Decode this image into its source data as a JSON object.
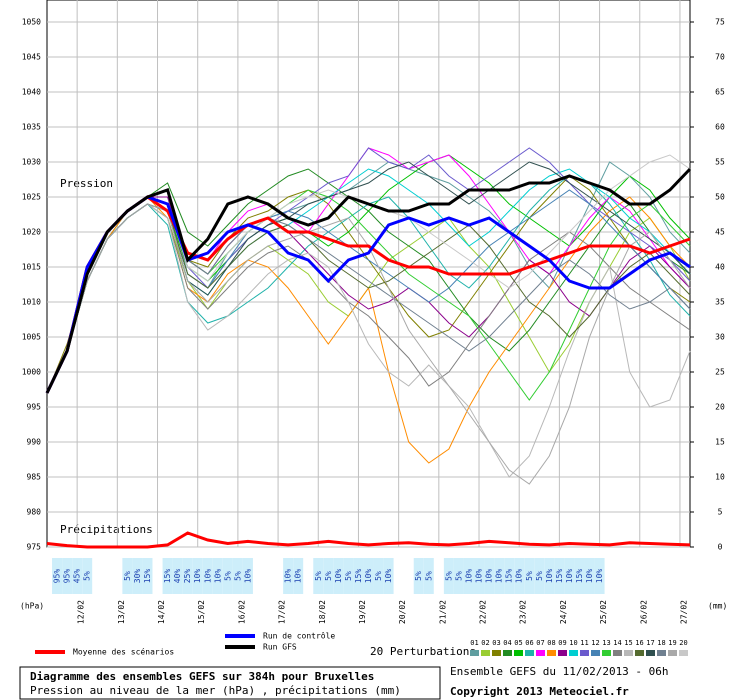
{
  "chart_data": {
    "type": "line",
    "title": "Diagramme des ensembles GEFS sur 384h pour Bruxelles",
    "subtitle": "Pression au niveau de la mer (hPa) , précipitations (mm)",
    "run_label": "Ensemble GEFS du 11/02/2013 - 06h",
    "copyright": "Copyright 2013 Meteociel.fr",
    "perturbations_label": "20 Perturbations",
    "pressure_label": "Pression",
    "precip_label": "Précipitations",
    "ylabel": "(hPa)",
    "y2label": "(mm)",
    "grid": true,
    "xlim": [
      0,
      384
    ],
    "xticks": [
      {
        "value": 18,
        "label": "12/02"
      },
      {
        "value": 42,
        "label": "13/02"
      },
      {
        "value": 66,
        "label": "14/02"
      },
      {
        "value": 90,
        "label": "15/02"
      },
      {
        "value": 114,
        "label": "16/02"
      },
      {
        "value": 138,
        "label": "17/02"
      },
      {
        "value": 162,
        "label": "18/02"
      },
      {
        "value": 186,
        "label": "19/02"
      },
      {
        "value": 210,
        "label": "20/02"
      },
      {
        "value": 234,
        "label": "21/02"
      },
      {
        "value": 258,
        "label": "22/02"
      },
      {
        "value": 282,
        "label": "23/02"
      },
      {
        "value": 306,
        "label": "24/02"
      },
      {
        "value": 330,
        "label": "25/02"
      },
      {
        "value": 354,
        "label": "26/02"
      },
      {
        "value": 378,
        "label": "27/02"
      }
    ],
    "ylim": [
      975,
      1050
    ],
    "yticks": [
      975,
      980,
      985,
      990,
      995,
      1000,
      1005,
      1010,
      1015,
      1020,
      1025,
      1030,
      1035,
      1040,
      1045,
      1050
    ],
    "y2lim": [
      0,
      75
    ],
    "y2ticks": [
      0,
      5,
      10,
      15,
      20,
      25,
      30,
      35,
      40,
      45,
      50,
      55,
      60,
      65,
      70,
      75
    ],
    "x": [
      0,
      12,
      24,
      36,
      48,
      60,
      72,
      84,
      96,
      108,
      120,
      132,
      144,
      156,
      168,
      180,
      192,
      204,
      216,
      228,
      240,
      252,
      264,
      276,
      288,
      300,
      312,
      324,
      336,
      348,
      360,
      372,
      384
    ],
    "series": [
      {
        "name": "01",
        "color": "#5f9ea0",
        "values": [
          997,
          1003,
          1014,
          1020,
          1023,
          1025,
          1025,
          1014,
          1012,
          1017,
          1020,
          1022,
          1023,
          1024,
          1025,
          1026,
          1028,
          1030,
          1029,
          1028,
          1027,
          1025,
          1023,
          1020,
          1015,
          1012,
          1018,
          1024,
          1030,
          1028,
          1025,
          1020,
          1017
        ]
      },
      {
        "name": "02",
        "color": "#9acd32",
        "values": [
          997,
          1003,
          1013,
          1019,
          1022,
          1024,
          1022,
          1013,
          1009,
          1013,
          1016,
          1018,
          1016,
          1014,
          1010,
          1008,
          1012,
          1016,
          1018,
          1020,
          1022,
          1018,
          1015,
          1010,
          1005,
          1000,
          1004,
          1010,
          1015,
          1020,
          1022,
          1018,
          1013
        ]
      },
      {
        "name": "03",
        "color": "#808000",
        "values": [
          997,
          1004,
          1014,
          1020,
          1023,
          1025,
          1024,
          1016,
          1015,
          1019,
          1022,
          1023,
          1025,
          1026,
          1024,
          1020,
          1016,
          1012,
          1008,
          1005,
          1006,
          1010,
          1014,
          1018,
          1022,
          1025,
          1028,
          1026,
          1022,
          1018,
          1015,
          1012,
          1010
        ]
      },
      {
        "name": "04",
        "color": "#228b22",
        "values": [
          997,
          1003,
          1013,
          1019,
          1023,
          1025,
          1027,
          1020,
          1018,
          1021,
          1024,
          1026,
          1028,
          1029,
          1027,
          1025,
          1023,
          1020,
          1018,
          1016,
          1012,
          1008,
          1005,
          1003,
          1006,
          1010,
          1014,
          1018,
          1022,
          1024,
          1020,
          1016,
          1014
        ]
      },
      {
        "name": "05",
        "color": "#00c000",
        "values": [
          997,
          1003,
          1014,
          1020,
          1023,
          1025,
          1023,
          1015,
          1013,
          1016,
          1019,
          1021,
          1022,
          1020,
          1018,
          1020,
          1023,
          1026,
          1028,
          1030,
          1031,
          1029,
          1027,
          1024,
          1022,
          1020,
          1018,
          1021,
          1025,
          1028,
          1026,
          1022,
          1019
        ]
      },
      {
        "name": "06",
        "color": "#20b2aa",
        "values": [
          997,
          1003,
          1013,
          1019,
          1022,
          1024,
          1021,
          1010,
          1007,
          1008,
          1010,
          1012,
          1015,
          1018,
          1020,
          1022,
          1024,
          1025,
          1022,
          1018,
          1014,
          1012,
          1015,
          1019,
          1023,
          1026,
          1028,
          1027,
          1024,
          1020,
          1016,
          1011,
          1008
        ]
      },
      {
        "name": "07",
        "color": "#ff00ff",
        "values": [
          997,
          1003,
          1014,
          1020,
          1023,
          1025,
          1024,
          1017,
          1016,
          1020,
          1023,
          1024,
          1022,
          1020,
          1024,
          1028,
          1032,
          1031,
          1029,
          1030,
          1031,
          1028,
          1024,
          1020,
          1016,
          1014,
          1018,
          1022,
          1025,
          1023,
          1019,
          1015,
          1012
        ]
      },
      {
        "name": "08",
        "color": "#ff8c00",
        "values": [
          997,
          1003,
          1013,
          1019,
          1023,
          1025,
          1022,
          1012,
          1010,
          1014,
          1016,
          1015,
          1012,
          1008,
          1004,
          1008,
          1012,
          1000,
          990,
          987,
          989,
          995,
          1000,
          1004,
          1008,
          1012,
          1016,
          1020,
          1023,
          1025,
          1022,
          1018,
          1015
        ]
      },
      {
        "name": "09",
        "color": "#8b008b",
        "values": [
          997,
          1003,
          1014,
          1020,
          1023,
          1025,
          1025,
          1016,
          1014,
          1018,
          1021,
          1022,
          1020,
          1017,
          1014,
          1011,
          1009,
          1010,
          1012,
          1010,
          1007,
          1005,
          1008,
          1012,
          1016,
          1014,
          1010,
          1008,
          1012,
          1016,
          1018,
          1015,
          1012
        ]
      },
      {
        "name": "10",
        "color": "#00ced1",
        "values": [
          997,
          1003,
          1013,
          1019,
          1022,
          1024,
          1023,
          1013,
          1011,
          1015,
          1018,
          1020,
          1021,
          1023,
          1025,
          1027,
          1029,
          1028,
          1026,
          1024,
          1021,
          1018,
          1020,
          1023,
          1026,
          1028,
          1029,
          1027,
          1025,
          1022,
          1020,
          1017,
          1014
        ]
      },
      {
        "name": "11",
        "color": "#6a5acd",
        "values": [
          997,
          1003,
          1014,
          1020,
          1023,
          1025,
          1024,
          1015,
          1012,
          1016,
          1019,
          1021,
          1023,
          1025,
          1027,
          1028,
          1032,
          1030,
          1029,
          1031,
          1028,
          1026,
          1028,
          1030,
          1032,
          1030,
          1027,
          1024,
          1022,
          1020,
          1018,
          1016,
          1013
        ]
      },
      {
        "name": "12",
        "color": "#4682b4",
        "values": [
          997,
          1003,
          1013,
          1019,
          1022,
          1024,
          1023,
          1014,
          1012,
          1016,
          1020,
          1022,
          1023,
          1022,
          1020,
          1018,
          1016,
          1014,
          1012,
          1010,
          1012,
          1015,
          1018,
          1020,
          1022,
          1024,
          1026,
          1024,
          1021,
          1018,
          1015,
          1012,
          1009
        ]
      },
      {
        "name": "13",
        "color": "#32cd32",
        "values": [
          997,
          1003,
          1014,
          1020,
          1023,
          1025,
          1024,
          1016,
          1014,
          1017,
          1020,
          1022,
          1024,
          1026,
          1025,
          1023,
          1020,
          1017,
          1014,
          1012,
          1010,
          1008,
          1004,
          1000,
          996,
          1000,
          1006,
          1012,
          1018,
          1022,
          1024,
          1021,
          1018
        ]
      },
      {
        "name": "14",
        "color": "#808080",
        "values": [
          997,
          1003,
          1013,
          1019,
          1022,
          1024,
          1022,
          1012,
          1009,
          1012,
          1015,
          1017,
          1018,
          1016,
          1013,
          1010,
          1008,
          1005,
          1002,
          998,
          1000,
          1004,
          1008,
          1012,
          1016,
          1018,
          1020,
          1018,
          1015,
          1012,
          1010,
          1008,
          1006
        ]
      },
      {
        "name": "15",
        "color": "#b8b8b8",
        "values": [
          997,
          1003,
          1013,
          1019,
          1022,
          1024,
          1022,
          1010,
          1006,
          1008,
          1011,
          1014,
          1016,
          1017,
          1015,
          1010,
          1004,
          1000,
          998,
          1001,
          998,
          995,
          990,
          985,
          988,
          995,
          1003,
          1010,
          1015,
          1000,
          995,
          996,
          1003
        ]
      },
      {
        "name": "16",
        "color": "#556b2f",
        "values": [
          997,
          1003,
          1014,
          1020,
          1023,
          1025,
          1023,
          1014,
          1012,
          1015,
          1018,
          1020,
          1021,
          1019,
          1016,
          1014,
          1012,
          1013,
          1015,
          1017,
          1019,
          1021,
          1018,
          1014,
          1010,
          1008,
          1005,
          1008,
          1012,
          1015,
          1017,
          1014,
          1011
        ]
      },
      {
        "name": "17",
        "color": "#2f4f4f",
        "values": [
          997,
          1003,
          1013,
          1019,
          1022,
          1024,
          1023,
          1013,
          1011,
          1015,
          1019,
          1021,
          1022,
          1024,
          1025,
          1026,
          1027,
          1029,
          1030,
          1028,
          1026,
          1024,
          1026,
          1028,
          1030,
          1029,
          1027,
          1025,
          1023,
          1021,
          1019,
          1017,
          1014
        ]
      },
      {
        "name": "18",
        "color": "#708090",
        "values": [
          997,
          1003,
          1014,
          1020,
          1023,
          1025,
          1024,
          1016,
          1014,
          1018,
          1021,
          1022,
          1021,
          1019,
          1017,
          1015,
          1013,
          1011,
          1009,
          1007,
          1005,
          1003,
          1005,
          1008,
          1011,
          1014,
          1016,
          1014,
          1011,
          1009,
          1010,
          1012,
          1009
        ]
      },
      {
        "name": "19",
        "color": "#a9a9a9",
        "values": [
          997,
          1003,
          1013,
          1019,
          1022,
          1024,
          1023,
          1013,
          1010,
          1013,
          1016,
          1018,
          1019,
          1020,
          1021,
          1022,
          1018,
          1012,
          1006,
          1002,
          998,
          994,
          990,
          986,
          984,
          988,
          995,
          1005,
          1012,
          1018,
          1020,
          1016,
          1012
        ]
      },
      {
        "name": "20",
        "color": "#c8c8c8",
        "values": [
          997,
          1003,
          1014,
          1020,
          1023,
          1025,
          1024,
          1015,
          1013,
          1017,
          1020,
          1022,
          1024,
          1025,
          1026,
          1025,
          1024,
          1023,
          1022,
          1020,
          1018,
          1016,
          1014,
          1012,
          1014,
          1017,
          1020,
          1023,
          1026,
          1028,
          1030,
          1031,
          1029
        ]
      },
      {
        "name": "Moyenne des scénarios",
        "color": "#ff0000",
        "values": [
          997,
          1003,
          1015,
          1020,
          1023,
          1025,
          1023,
          1017,
          1016,
          1019,
          1021,
          1022,
          1020,
          1020,
          1019,
          1018,
          1018,
          1016,
          1015,
          1015,
          1014,
          1014,
          1014,
          1014,
          1015,
          1016,
          1017,
          1018,
          1018,
          1018,
          1017,
          1018,
          1019
        ]
      },
      {
        "name": "Run de contrôle",
        "color": "#0000ff",
        "values": [
          997,
          1003,
          1015,
          1020,
          1023,
          1025,
          1024,
          1016,
          1017,
          1020,
          1021,
          1020,
          1017,
          1016,
          1013,
          1016,
          1017,
          1021,
          1022,
          1021,
          1022,
          1021,
          1022,
          1020,
          1018,
          1016,
          1013,
          1012,
          1012,
          1014,
          1016,
          1017,
          1015
        ]
      },
      {
        "name": "Run GFS",
        "color": "#000000",
        "values": [
          997,
          1003,
          1014,
          1020,
          1023,
          1025,
          1026,
          1016,
          1019,
          1024,
          1025,
          1024,
          1022,
          1021,
          1022,
          1025,
          1024,
          1023,
          1023,
          1024,
          1024,
          1026,
          1026,
          1026,
          1027,
          1027,
          1028,
          1027,
          1026,
          1024,
          1024,
          1026,
          1029
        ]
      },
      {
        "color": "#ff0000",
        "axis": "y2",
        "values": [
          0.5,
          0.2,
          0,
          0,
          0,
          0,
          0.3,
          2,
          1,
          0.5,
          0.8,
          0.5,
          0.3,
          0.5,
          0.8,
          0.5,
          0.3,
          0.5,
          0.6,
          0.4,
          0.3,
          0.5,
          0.8,
          0.6,
          0.4,
          0.3,
          0.5,
          0.4,
          0.3,
          0.6,
          0.5,
          0.4,
          0.3
        ]
      }
    ],
    "precip_probabilities": {
      "hours": [
        6,
        12,
        18,
        24,
        48,
        54,
        60,
        72,
        78,
        84,
        90,
        96,
        102,
        108,
        114,
        120,
        144,
        150,
        162,
        168,
        174,
        180,
        186,
        192,
        198,
        204,
        222,
        228,
        240,
        246,
        252,
        258,
        264,
        270,
        276,
        282,
        288,
        294,
        300,
        306,
        312,
        318,
        324,
        330
      ],
      "labels": [
        "95%",
        "95%",
        "45%",
        "5%",
        "5%",
        "30%",
        "15%",
        "15%",
        "40%",
        "25%",
        "10%",
        "10%",
        "10%",
        "5%",
        "5%",
        "10%",
        "10%",
        "10%",
        "5%",
        "5%",
        "10%",
        "5%",
        "15%",
        "10%",
        "5%",
        "10%",
        "5%",
        "5%",
        "5%",
        "5%",
        "10%",
        "10%",
        "10%",
        "10%",
        "15%",
        "10%",
        "5%",
        "5%",
        "10%",
        "15%",
        "10%",
        "15%",
        "10%",
        "10%"
      ]
    }
  }
}
